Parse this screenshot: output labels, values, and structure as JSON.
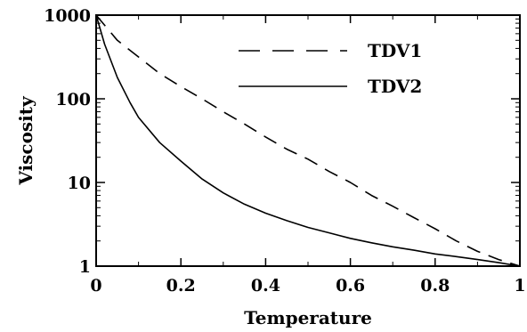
{
  "chart_data": {
    "type": "line",
    "xlabel": "Temperature",
    "ylabel": "Viscosity",
    "xlim": [
      0,
      1
    ],
    "ylim": [
      1,
      1000
    ],
    "y_scale": "log",
    "x_ticks": [
      0,
      0.2,
      0.4,
      0.6,
      0.8,
      1
    ],
    "x_tick_labels": [
      "0",
      "0.2",
      "0.4",
      "0.6",
      "0.8",
      "1"
    ],
    "y_ticks": [
      1,
      10,
      100,
      1000
    ],
    "y_tick_labels": [
      "1",
      "10",
      "100",
      "1000"
    ],
    "legend_position": "top-right",
    "grid": false,
    "series": [
      {
        "name": "TDV1",
        "style": "dashed",
        "color": "#000000",
        "x": [
          0.0,
          0.05,
          0.1,
          0.15,
          0.2,
          0.25,
          0.3,
          0.35,
          0.4,
          0.45,
          0.5,
          0.55,
          0.6,
          0.65,
          0.7,
          0.75,
          0.8,
          0.85,
          0.9,
          0.95,
          1.0
        ],
        "y": [
          1000,
          500,
          316,
          200,
          140,
          100,
          70,
          50,
          35,
          25,
          19,
          13.5,
          10,
          7,
          5.2,
          3.8,
          2.8,
          2.0,
          1.5,
          1.2,
          1.0
        ]
      },
      {
        "name": "TDV2",
        "style": "solid",
        "color": "#000000",
        "x": [
          0.0,
          0.02,
          0.05,
          0.08,
          0.1,
          0.15,
          0.2,
          0.25,
          0.3,
          0.35,
          0.4,
          0.45,
          0.5,
          0.55,
          0.6,
          0.65,
          0.7,
          0.75,
          0.8,
          0.85,
          0.9,
          0.95,
          1.0
        ],
        "y": [
          1000,
          450,
          180,
          90,
          60,
          30,
          18,
          11,
          7.5,
          5.5,
          4.3,
          3.5,
          2.9,
          2.5,
          2.15,
          1.9,
          1.7,
          1.55,
          1.4,
          1.3,
          1.2,
          1.1,
          1.0
        ]
      }
    ]
  }
}
